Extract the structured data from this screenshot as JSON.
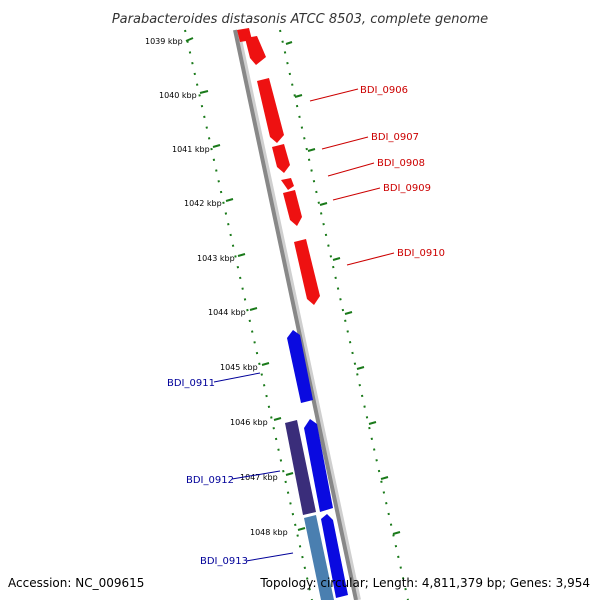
{
  "title": "Parabacteroides distasonis ATCC 8503, complete genome",
  "footer": {
    "accession": "Accession: NC_009615",
    "summary": "Topology: circular; Length: 4,811,379 bp; Genes: 3,954"
  },
  "colors": {
    "forward_gene": "#ee1111",
    "reverse_gene": "#0a0ae0",
    "reverse_gene_dark": "#3a2d7a",
    "reverse_gene_steel": "#4a7fb0",
    "tick": "#1a7a1a",
    "backbone": "#888888",
    "forward_label": "#cc0000",
    "reverse_label": "#000099"
  },
  "ticks": [
    {
      "label": "1039 kbp"
    },
    {
      "label": "1040 kbp"
    },
    {
      "label": "1041 kbp"
    },
    {
      "label": "1042 kbp"
    },
    {
      "label": "1043 kbp"
    },
    {
      "label": "1044 kbp"
    },
    {
      "label": "1045 kbp"
    },
    {
      "label": "1046 kbp"
    },
    {
      "label": "1047 kbp"
    },
    {
      "label": "1048 kbp"
    }
  ],
  "gene_labels": {
    "forward": [
      "BDI_0906",
      "BDI_0907",
      "BDI_0908",
      "BDI_0909",
      "BDI_0910"
    ],
    "reverse": [
      "BDI_0911",
      "BDI_0912",
      "BDI_0913"
    ]
  }
}
